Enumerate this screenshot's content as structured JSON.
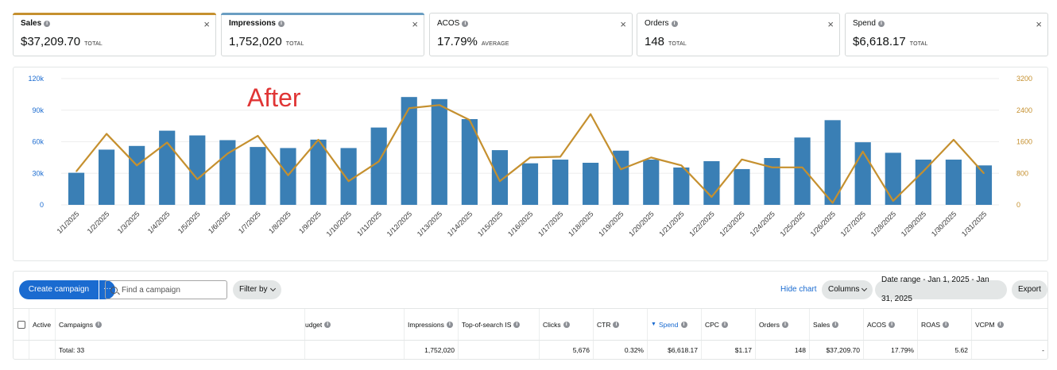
{
  "metrics": [
    {
      "label": "Sales",
      "value": "$37,209.70",
      "unit": "TOTAL",
      "accent": "#c5902f",
      "bold": true
    },
    {
      "label": "Impressions",
      "value": "1,752,020",
      "unit": "TOTAL",
      "accent": "#6a9ec2",
      "bold": true
    },
    {
      "label": "ACOS",
      "value": "17.79%",
      "unit": "AVERAGE",
      "accent": null,
      "bold": false
    },
    {
      "label": "Orders",
      "value": "148",
      "unit": "TOTAL",
      "accent": null,
      "bold": false
    },
    {
      "label": "Spend",
      "value": "$6,618.17",
      "unit": "TOTAL",
      "accent": null,
      "bold": false
    }
  ],
  "close_glyph": "×",
  "annotation": "After",
  "chart_data": {
    "type": "bar+line",
    "categories": [
      "1/1/2025",
      "1/2/2025",
      "1/3/2025",
      "1/4/2025",
      "1/5/2025",
      "1/6/2025",
      "1/7/2025",
      "1/8/2025",
      "1/9/2025",
      "1/10/2025",
      "1/11/2025",
      "1/12/2025",
      "1/13/2025",
      "1/14/2025",
      "1/15/2025",
      "1/16/2025",
      "1/17/2025",
      "1/18/2025",
      "1/19/2025",
      "1/20/2025",
      "1/21/2025",
      "1/22/2025",
      "1/23/2025",
      "1/24/2025",
      "1/25/2025",
      "1/26/2025",
      "1/27/2025",
      "1/28/2025",
      "1/29/2025",
      "1/30/2025",
      "1/31/2025"
    ],
    "series": [
      {
        "values": [
          30500,
          52500,
          56000,
          70500,
          66000,
          61500,
          55000,
          54000,
          62000,
          54000,
          73500,
          102500,
          100500,
          81500,
          52000,
          39500,
          43000,
          40000,
          51500,
          43000,
          35500,
          41500,
          34000,
          44500,
          64000,
          80500,
          59500,
          49500,
          43000,
          43000,
          37500
        ],
        "color": "#3a7fb5",
        "axis": "left",
        "kind": "bar"
      },
      {
        "values": [
          850,
          1800,
          1000,
          1580,
          650,
          1300,
          1750,
          750,
          1650,
          600,
          1100,
          2450,
          2530,
          2150,
          600,
          1200,
          1220,
          2300,
          900,
          1200,
          1000,
          200,
          1150,
          950,
          950,
          50,
          1350,
          100,
          850,
          1650,
          800
        ],
        "color": "#c5902f",
        "axis": "right",
        "kind": "line"
      }
    ],
    "ylim_left": [
      0,
      120000
    ],
    "ylim_right": [
      0,
      3200
    ],
    "left_ticks": [
      "0",
      "30k",
      "60k",
      "90k",
      "120k"
    ],
    "right_ticks": [
      "0",
      "800",
      "1600",
      "2400",
      "3200"
    ],
    "left_tick_color": "#1a6bd0",
    "right_tick_color": "#c5902f",
    "grid": true
  },
  "toolbar": {
    "create_label": "Create campaign",
    "more_label": "···",
    "search_placeholder": "Find a campaign",
    "filter_label": "Filter by",
    "hide_chart_label": "Hide chart",
    "columns_label": "Columns",
    "date_range_label": "Date range - Jan 1, 2025 - Jan 31, 2025",
    "export_label": "Export"
  },
  "table": {
    "headers": [
      "Active",
      "Campaigns",
      "udget",
      "Impressions",
      "Top-of-search IS",
      "Clicks",
      "CTR",
      "Spend",
      "CPC",
      "Orders",
      "Sales",
      "ACOS",
      "ROAS",
      "VCPM"
    ],
    "total_row": {
      "label": "Total: 33",
      "impressions": "1,752,020",
      "clicks": "5,676",
      "ctr": "0.32%",
      "spend": "$6,618.17",
      "cpc": "$1.17",
      "orders": "148",
      "sales": "$37,209.70",
      "acos": "17.79%",
      "roas": "5.62",
      "vcpm": "-"
    }
  }
}
